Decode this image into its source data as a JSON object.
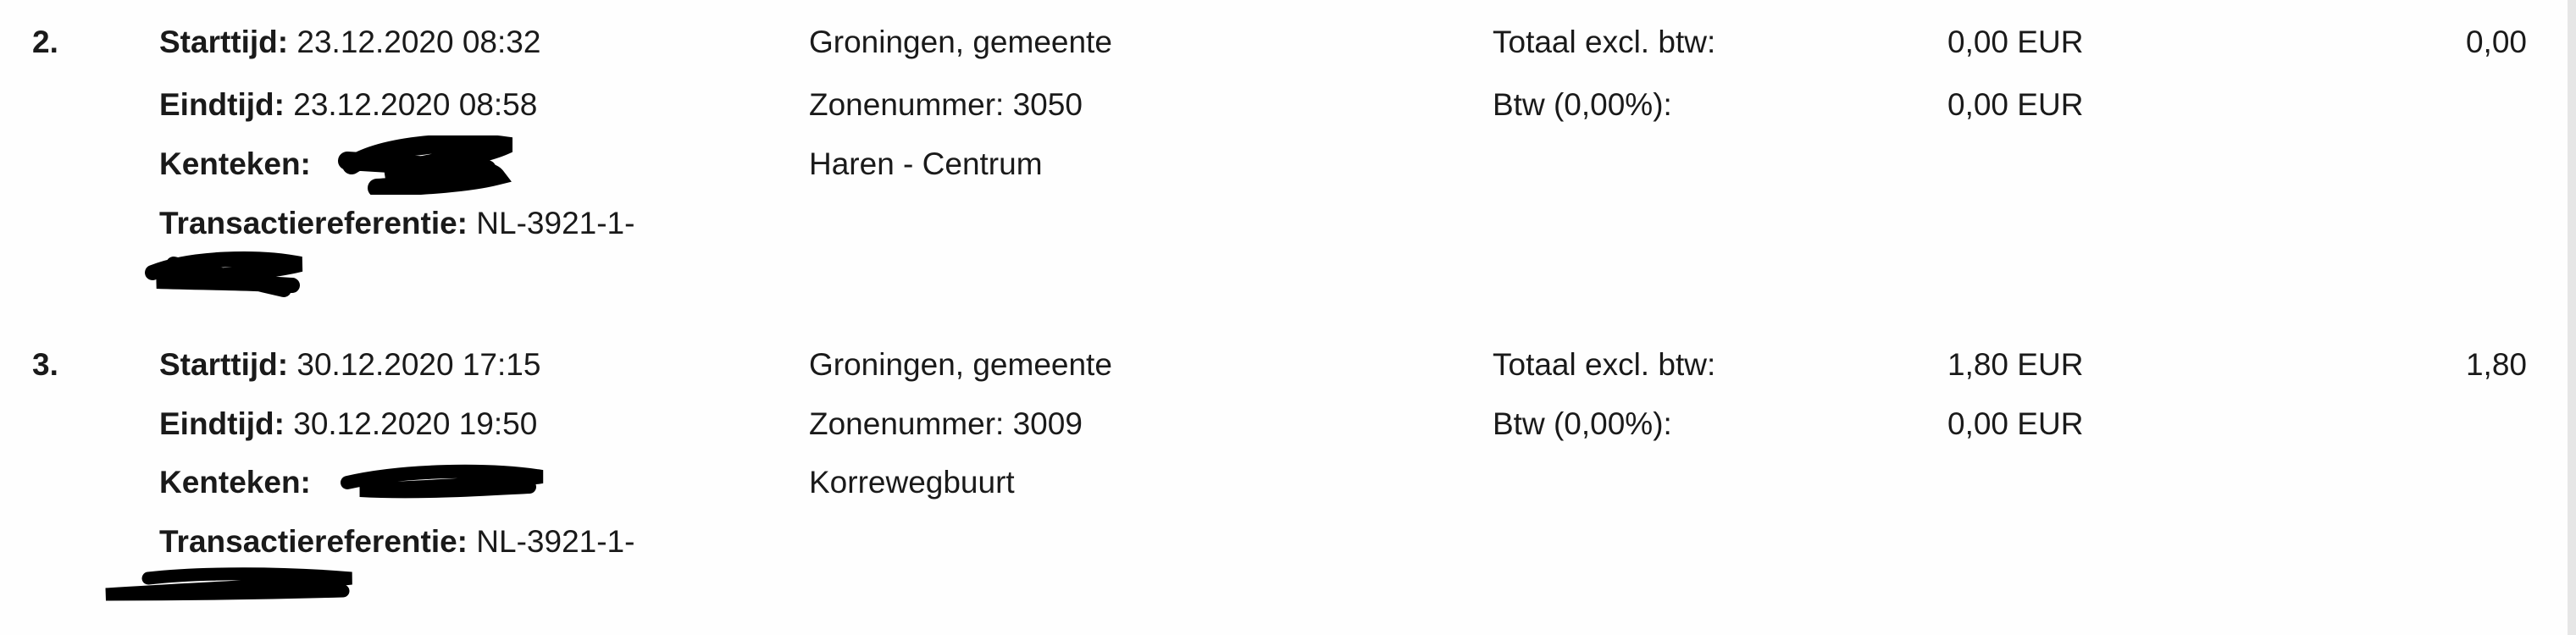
{
  "transactions": [
    {
      "index": "2.",
      "start_label": "Starttijd:",
      "start_value": "23.12.2020 08:32",
      "end_label": "Eindtijd:",
      "end_value": "23.12.2020 08:58",
      "plate_label": "Kenteken:",
      "ref_label": "Transactiereferentie:",
      "ref_value": "NL-3921-1-",
      "municipality": "Groningen, gemeente",
      "zone": "Zonenummer: 3050",
      "area": "Haren - Centrum",
      "total_excl_label": "Totaal excl. btw:",
      "total_excl_value": "0,00 EUR",
      "vat_label": "Btw (0,00%):",
      "vat_value": "0,00 EUR",
      "amount": "0,00"
    },
    {
      "index": "3.",
      "start_label": "Starttijd:",
      "start_value": "30.12.2020 17:15",
      "end_label": "Eindtijd:",
      "end_value": "30.12.2020 19:50",
      "plate_label": "Kenteken:",
      "ref_label": "Transactiereferentie:",
      "ref_value": "NL-3921-1-",
      "municipality": "Groningen, gemeente",
      "zone": "Zonenummer: 3009",
      "area": "Korrewegbuurt",
      "total_excl_label": "Totaal excl. btw:",
      "total_excl_value": "1,80 EUR",
      "vat_label": "Btw (0,00%):",
      "vat_value": "0,00 EUR",
      "amount": "1,80"
    }
  ]
}
